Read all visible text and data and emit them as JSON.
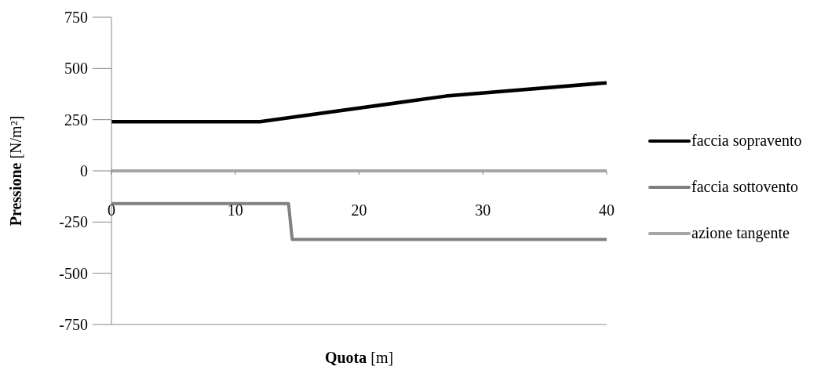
{
  "chart_data": {
    "type": "line",
    "xlabel": "Quota [m]",
    "ylabel": "Pressione [N/m²]",
    "xlim": [
      0,
      40
    ],
    "xticks": [
      0,
      10,
      20,
      30,
      40
    ],
    "ylim": [
      -750,
      750
    ],
    "yticks": [
      -750,
      -500,
      -250,
      0,
      250,
      500,
      750
    ],
    "legend": "right",
    "line_style": "solid",
    "series": [
      {
        "name": "faccia sopravento",
        "color": "#000000",
        "x": [
          0,
          12,
          27,
          40
        ],
        "values": [
          240,
          240,
          365,
          430
        ]
      },
      {
        "name": "faccia sottovento",
        "color": "#808080",
        "x": [
          0,
          14.3,
          14.6,
          40
        ],
        "values": [
          -160,
          -160,
          -335,
          -335
        ]
      },
      {
        "name": "azione tangente",
        "color": "#a6a6a6",
        "x": [
          0,
          40
        ],
        "values": [
          0,
          0
        ]
      }
    ]
  }
}
